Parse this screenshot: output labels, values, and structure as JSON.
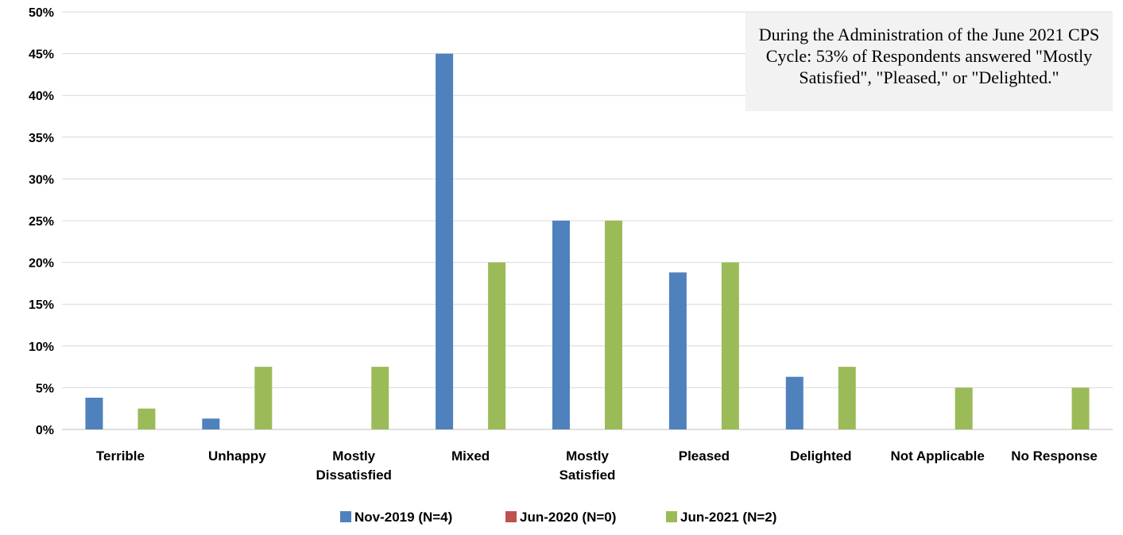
{
  "chart_data": {
    "type": "bar",
    "title": "",
    "xlabel": "",
    "ylabel": "",
    "ylim": [
      0,
      50
    ],
    "ytick_step": 5,
    "ytick_labels": [
      "0%",
      "5%",
      "10%",
      "15%",
      "20%",
      "25%",
      "30%",
      "35%",
      "40%",
      "45%",
      "50%"
    ],
    "grid": true,
    "legend_position": "bottom",
    "categories": [
      [
        "Terrible"
      ],
      [
        "Unhappy"
      ],
      [
        "Mostly",
        "Dissatisfied"
      ],
      [
        "Mixed"
      ],
      [
        "Mostly",
        "Satisfied"
      ],
      [
        "Pleased"
      ],
      [
        "Delighted"
      ],
      [
        "Not Applicable"
      ],
      [
        "No Response"
      ]
    ],
    "series": [
      {
        "name": "Nov-2019 (N=4)",
        "color": "#4f81bd",
        "values": [
          3.8,
          1.3,
          0,
          45,
          25,
          18.8,
          6.3,
          0,
          0
        ]
      },
      {
        "name": "Jun-2020 (N=0)",
        "color": "#c0504d",
        "values": [
          0,
          0,
          0,
          0,
          0,
          0,
          0,
          0,
          0
        ]
      },
      {
        "name": "Jun-2021 (N=2)",
        "color": "#9bbb59",
        "values": [
          2.5,
          7.5,
          7.5,
          20,
          25,
          20,
          7.5,
          5,
          5
        ]
      }
    ],
    "annotation": "During the Administration of the June 2021 CPS Cycle: 53% of Respondents answered \"Mostly Satisfied\", \"Pleased,\" or \"Delighted.\""
  }
}
